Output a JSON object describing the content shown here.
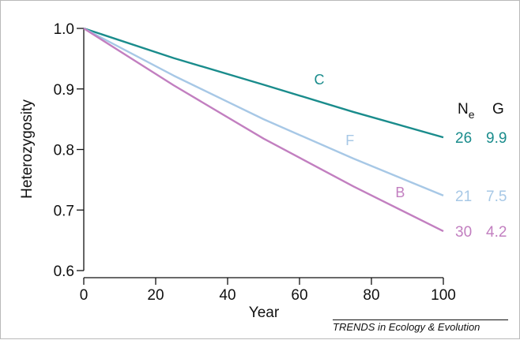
{
  "chart_data": {
    "type": "line",
    "xlabel": "Year",
    "ylabel": "Heterozygosity",
    "xlim": [
      0,
      100
    ],
    "ylim": [
      0.6,
      1.0
    ],
    "x_ticks": [
      "0",
      "20",
      "40",
      "60",
      "80",
      "100"
    ],
    "y_ticks": [
      "0.6",
      "0.7",
      "0.8",
      "0.9",
      "1.0"
    ],
    "series": [
      {
        "name": "C",
        "color": "#1a8c8c",
        "x": [
          0,
          25,
          50,
          75,
          100
        ],
        "values": [
          1.0,
          0.951,
          0.907,
          0.862,
          0.82
        ]
      },
      {
        "name": "F",
        "color": "#a7c8e6",
        "x": [
          0,
          25,
          50,
          75,
          100
        ],
        "values": [
          1.0,
          0.922,
          0.85,
          0.785,
          0.724
        ]
      },
      {
        "name": "B",
        "color": "#c27fc0",
        "x": [
          0,
          25,
          50,
          75,
          100
        ],
        "values": [
          1.0,
          0.906,
          0.818,
          0.739,
          0.665
        ]
      }
    ],
    "table": {
      "headers": {
        "ne_main": "N",
        "ne_sub": "e",
        "g": "G"
      },
      "rows": [
        {
          "ne": "26",
          "g": "9.9"
        },
        {
          "ne": "21",
          "g": "7.5"
        },
        {
          "ne": "30",
          "g": "4.2"
        }
      ]
    },
    "grid": false
  },
  "source": "TRENDS in Ecology & Evolution"
}
